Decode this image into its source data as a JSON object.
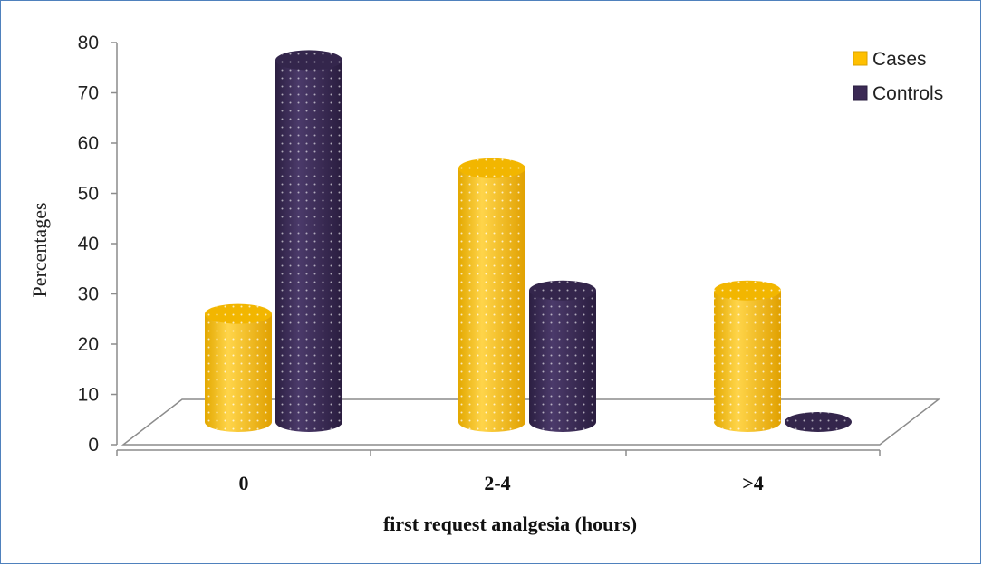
{
  "chart_data": {
    "type": "bar",
    "categories": [
      "0",
      "2-4",
      ">4"
    ],
    "series": [
      {
        "name": "Cases",
        "values": [
          23,
          54,
          28
        ],
        "color": "#ffc000"
      },
      {
        "name": "Controls",
        "values": [
          77,
          28,
          0
        ],
        "color": "#3b2a55"
      }
    ],
    "title": "",
    "xlabel": "first request analgesia (hours)",
    "ylabel": "Percentages",
    "ylim": [
      0,
      80
    ],
    "yticks": [
      "0",
      "10",
      "20",
      "30",
      "40",
      "50",
      "60",
      "70",
      "80"
    ],
    "legend_position": "top-right",
    "style": "3d-cylinder",
    "grid": false
  }
}
